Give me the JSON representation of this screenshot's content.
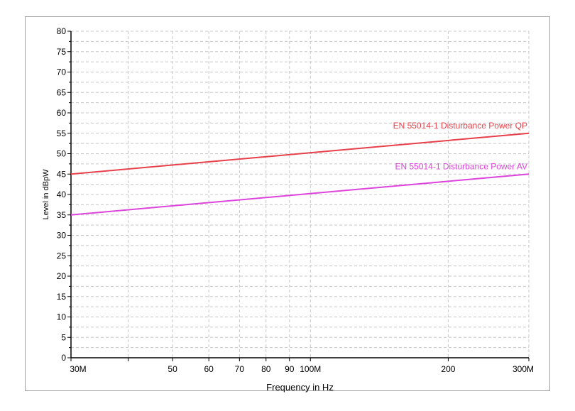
{
  "chart_data": {
    "type": "line",
    "xlabel": "Frequency in Hz",
    "ylabel": "Level in dBpW",
    "x_scale": "log",
    "xlim": [
      30,
      300
    ],
    "ylim": [
      0,
      80
    ],
    "grid": true,
    "y_ticks": [
      0,
      5,
      10,
      15,
      20,
      25,
      30,
      35,
      40,
      45,
      50,
      55,
      60,
      65,
      70,
      75,
      80
    ],
    "x_ticks": [
      {
        "value": 30,
        "label": "30M"
      },
      {
        "value": 40,
        "label": ""
      },
      {
        "value": 50,
        "label": "50"
      },
      {
        "value": 60,
        "label": "60"
      },
      {
        "value": 70,
        "label": "70"
      },
      {
        "value": 80,
        "label": "80"
      },
      {
        "value": 90,
        "label": "90"
      },
      {
        "value": 100,
        "label": "100M"
      },
      {
        "value": 200,
        "label": "200"
      },
      {
        "value": 300,
        "label": "300M"
      }
    ],
    "series": [
      {
        "name": "EN 55014-1 Disturbance Power QP",
        "color": "#e8404a",
        "x": [
          30,
          300
        ],
        "y": [
          45,
          55
        ]
      },
      {
        "name": "EN 55014-1 Disturbance Power AV",
        "color": "#dd44dd",
        "x": [
          30,
          300
        ],
        "y": [
          35,
          45
        ]
      }
    ]
  }
}
